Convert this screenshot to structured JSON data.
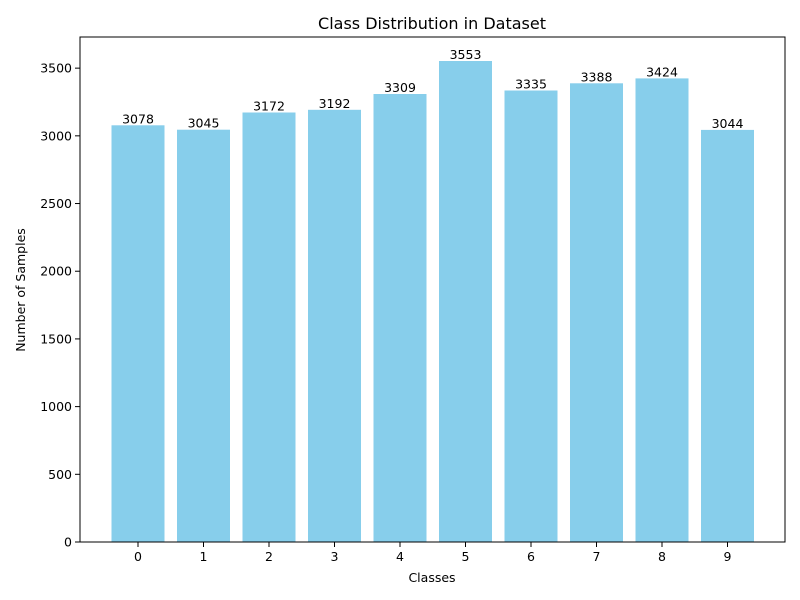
{
  "chart_data": {
    "type": "bar",
    "title": "Class Distribution in Dataset",
    "xlabel": "Classes",
    "ylabel": "Number of Samples",
    "categories": [
      "0",
      "1",
      "2",
      "3",
      "4",
      "5",
      "6",
      "7",
      "8",
      "9"
    ],
    "values": [
      3078,
      3045,
      3172,
      3192,
      3309,
      3553,
      3335,
      3388,
      3424,
      3044
    ],
    "data_labels": [
      "3078",
      "3045",
      "3172",
      "3192",
      "3309",
      "3553",
      "3335",
      "3388",
      "3424",
      "3044"
    ],
    "yticks": [
      0,
      500,
      1000,
      1500,
      2000,
      2500,
      3000,
      3500
    ],
    "ytick_labels": [
      "0",
      "500",
      "1000",
      "1500",
      "2000",
      "2500",
      "3000",
      "3500"
    ],
    "ylim": [
      0,
      3730
    ],
    "bar_color": "#87ceeb",
    "grid": false,
    "legend": "none"
  }
}
